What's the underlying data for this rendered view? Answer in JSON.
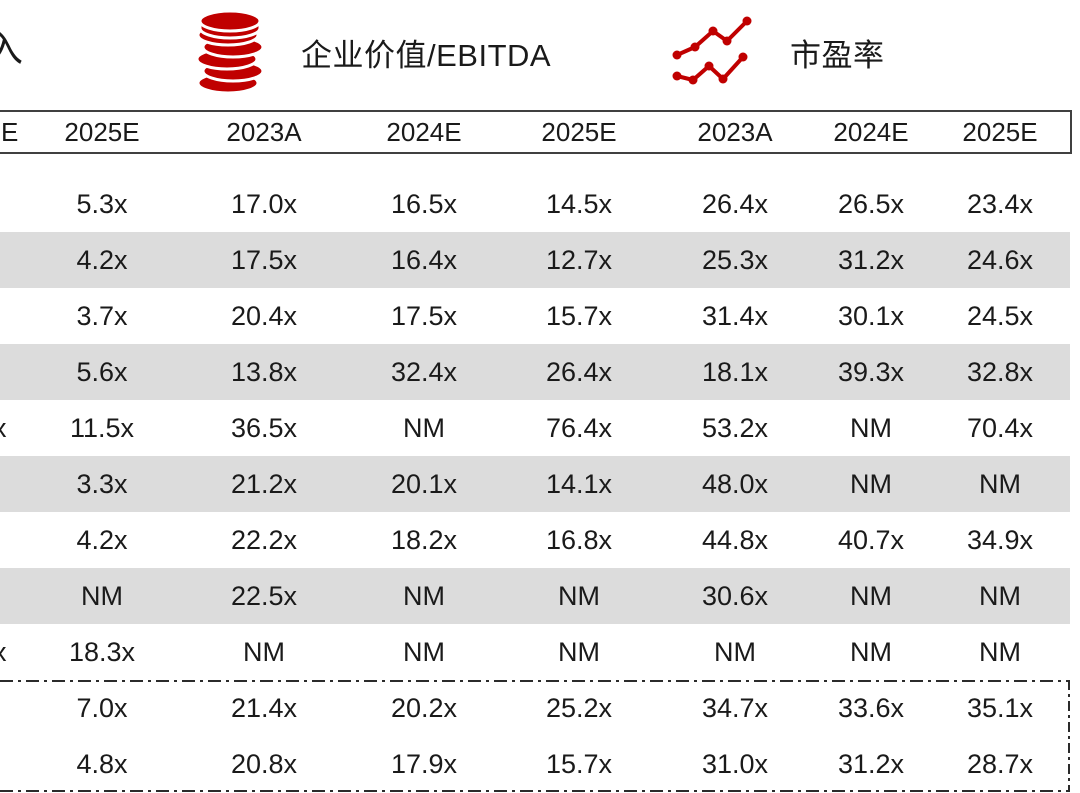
{
  "legend": {
    "revenue_label_fragment": "入",
    "ev_ebitda_label": "企业价值/EBITDA",
    "pe_label": "市盈率"
  },
  "colors": {
    "accent_red": "#C00000",
    "zebra_gray": "#DCDCDC",
    "border_dark": "#404040"
  },
  "table": {
    "columns": [
      "E",
      "2025E",
      "2023A",
      "2024E",
      "2025E",
      "2023A",
      "2024E",
      "2025E"
    ],
    "rows": [
      {
        "shaded": false,
        "cells": [
          "",
          "5.3x",
          "17.0x",
          "16.5x",
          "14.5x",
          "26.4x",
          "26.5x",
          "23.4x"
        ]
      },
      {
        "shaded": true,
        "cells": [
          "",
          "4.2x",
          "17.5x",
          "16.4x",
          "12.7x",
          "25.3x",
          "31.2x",
          "24.6x"
        ]
      },
      {
        "shaded": false,
        "cells": [
          "",
          "3.7x",
          "20.4x",
          "17.5x",
          "15.7x",
          "31.4x",
          "30.1x",
          "24.5x"
        ]
      },
      {
        "shaded": true,
        "cells": [
          "",
          "5.6x",
          "13.8x",
          "32.4x",
          "26.4x",
          "18.1x",
          "39.3x",
          "32.8x"
        ]
      },
      {
        "shaded": false,
        "cells": [
          "x",
          "11.5x",
          "36.5x",
          "NM",
          "76.4x",
          "53.2x",
          "NM",
          "70.4x"
        ]
      },
      {
        "shaded": true,
        "cells": [
          "",
          "3.3x",
          "21.2x",
          "20.1x",
          "14.1x",
          "48.0x",
          "NM",
          "NM"
        ]
      },
      {
        "shaded": false,
        "cells": [
          "",
          "4.2x",
          "22.2x",
          "18.2x",
          "16.8x",
          "44.8x",
          "40.7x",
          "34.9x"
        ]
      },
      {
        "shaded": true,
        "cells": [
          "",
          "NM",
          "22.5x",
          "NM",
          "NM",
          "30.6x",
          "NM",
          "NM"
        ]
      },
      {
        "shaded": false,
        "cells": [
          "x",
          "18.3x",
          "NM",
          "NM",
          "NM",
          "NM",
          "NM",
          "NM"
        ]
      }
    ],
    "summary_rows": [
      {
        "cells": [
          "",
          "7.0x",
          "21.4x",
          "20.2x",
          "25.2x",
          "34.7x",
          "33.6x",
          "35.1x"
        ]
      },
      {
        "cells": [
          "",
          "4.8x",
          "20.8x",
          "17.9x",
          "15.7x",
          "31.0x",
          "31.2x",
          "28.7x"
        ]
      }
    ]
  }
}
